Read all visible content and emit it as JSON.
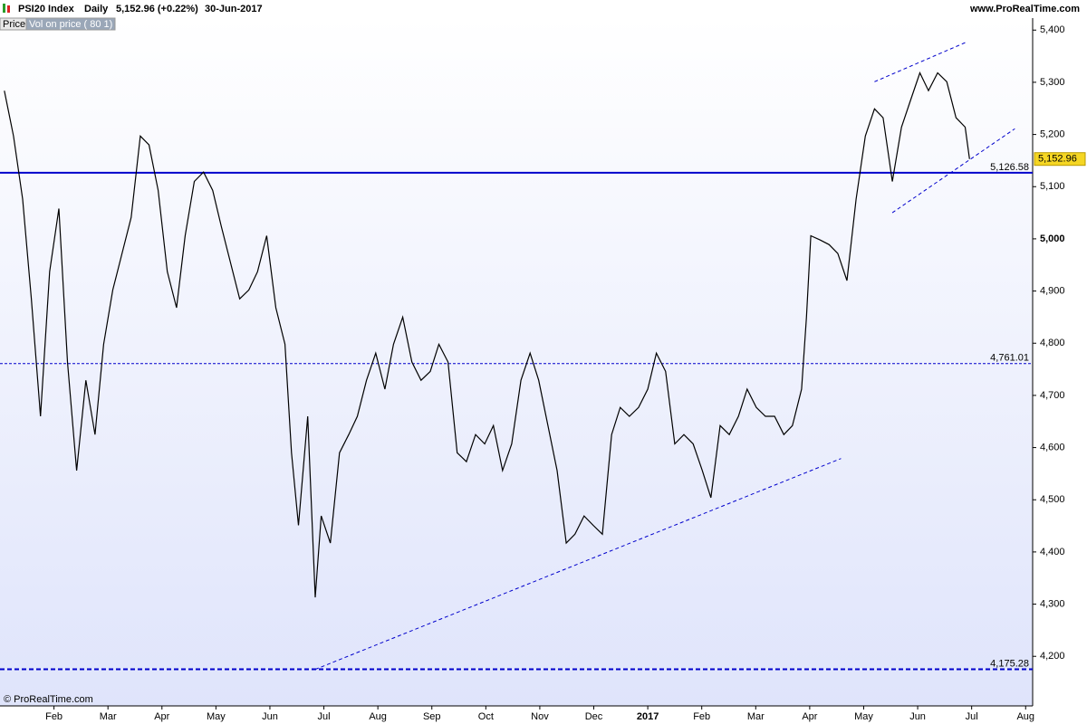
{
  "chart_data": {
    "type": "line",
    "header": {
      "symbol": "PSI20 Index",
      "period": "Daily",
      "quote": "5,152.96 (+0.22%)",
      "date": "30-Jun-2017",
      "site": "www.ProRealTime.com"
    },
    "tabs": [
      "Price",
      "Vol on price ( 80 1)"
    ],
    "copyright": "© ProRealTime.com",
    "xlim": [
      0,
      19.13
    ],
    "ylim": [
      4105,
      5423
    ],
    "xticks": [
      {
        "value": 1,
        "label": "Feb"
      },
      {
        "value": 2,
        "label": "Mar"
      },
      {
        "value": 3,
        "label": "Apr"
      },
      {
        "value": 4,
        "label": "May"
      },
      {
        "value": 5,
        "label": "Jun"
      },
      {
        "value": 6,
        "label": "Jul"
      },
      {
        "value": 7,
        "label": "Aug"
      },
      {
        "value": 8,
        "label": "Sep"
      },
      {
        "value": 9,
        "label": "Oct"
      },
      {
        "value": 10,
        "label": "Nov"
      },
      {
        "value": 11,
        "label": "Dec"
      },
      {
        "value": 12,
        "label": "2017"
      },
      {
        "value": 13,
        "label": "Feb"
      },
      {
        "value": 14,
        "label": "Mar"
      },
      {
        "value": 15,
        "label": "Apr"
      },
      {
        "value": 16,
        "label": "May"
      },
      {
        "value": 17,
        "label": "Jun"
      },
      {
        "value": 18,
        "label": "Jul"
      },
      {
        "value": 19,
        "label": "Aug"
      }
    ],
    "yticks": [
      {
        "value": 4200,
        "label": "4,200"
      },
      {
        "value": 4300,
        "label": "4,300"
      },
      {
        "value": 4400,
        "label": "4,400"
      },
      {
        "value": 4500,
        "label": "4,500"
      },
      {
        "value": 4600,
        "label": "4,600"
      },
      {
        "value": 4700,
        "label": "4,700"
      },
      {
        "value": 4800,
        "label": "4,800"
      },
      {
        "value": 4900,
        "label": "4,900"
      },
      {
        "value": 5000,
        "label": "5,000"
      },
      {
        "value": 5100,
        "label": "5,100"
      },
      {
        "value": 5200,
        "label": "5,200"
      },
      {
        "value": 5300,
        "label": "5,300"
      },
      {
        "value": 5400,
        "label": "5,400"
      }
    ],
    "x": [
      0.08,
      0.25,
      0.42,
      0.58,
      0.75,
      0.92,
      1.09,
      1.25,
      1.42,
      1.59,
      1.76,
      1.92,
      2.09,
      2.26,
      2.43,
      2.6,
      2.76,
      2.93,
      3.1,
      3.27,
      3.43,
      3.6,
      3.77,
      3.94,
      4.1,
      4.27,
      4.44,
      4.61,
      4.77,
      4.94,
      5.11,
      5.28,
      5.4,
      5.53,
      5.7,
      5.84,
      5.95,
      6.12,
      6.29,
      6.46,
      6.62,
      6.79,
      6.96,
      7.13,
      7.29,
      7.46,
      7.63,
      7.8,
      7.97,
      8.13,
      8.3,
      8.47,
      8.64,
      8.81,
      8.98,
      9.14,
      9.31,
      9.48,
      9.65,
      9.82,
      9.98,
      10.15,
      10.32,
      10.49,
      10.65,
      10.82,
      10.99,
      11.16,
      11.33,
      11.49,
      11.66,
      11.83,
      12,
      12.16,
      12.33,
      12.5,
      12.67,
      12.84,
      13.01,
      13.17,
      13.34,
      13.51,
      13.68,
      13.84,
      14.01,
      14.18,
      14.35,
      14.52,
      14.68,
      14.85,
      14.94,
      15.02,
      15.19,
      15.36,
      15.52,
      15.69,
      15.86,
      16.03,
      16.2,
      16.36,
      16.53,
      16.7,
      16.87,
      17.04,
      17.2,
      17.37,
      17.54,
      17.71,
      17.88,
      17.96
    ],
    "series": [
      {
        "name": "PSI20 Index",
        "color": "#000000",
        "values": [
          5284,
          5197,
          5076,
          4885,
          4660,
          4937,
          5058,
          4764,
          4556,
          4729,
          4625,
          4798,
          4902,
          4972,
          5041,
          5197,
          5180,
          5093,
          4937,
          4868,
          5006,
          5110,
          5128,
          5093,
          5024,
          4954,
          4885,
          4902,
          4937,
          5006,
          4868,
          4798,
          4590,
          4451,
          4660,
          4313,
          4469,
          4417,
          4590,
          4625,
          4660,
          4729,
          4781,
          4712,
          4798,
          4850,
          4764,
          4729,
          4746,
          4798,
          4764,
          4590,
          4573,
          4625,
          4607,
          4642,
          4556,
          4607,
          4729,
          4781,
          4729,
          4642,
          4556,
          4417,
          4434,
          4469,
          4451,
          4434,
          4625,
          4677,
          4660,
          4677,
          4712,
          4781,
          4746,
          4607,
          4625,
          4607,
          4556,
          4504,
          4642,
          4625,
          4660,
          4712,
          4677,
          4660,
          4660,
          4625,
          4642,
          4712,
          4850,
          5006,
          4998,
          4989,
          4972,
          4920,
          5076,
          5197,
          5249,
          5232,
          5110,
          5214,
          5266,
          5318,
          5284,
          5318,
          5301,
          5232,
          5214,
          5152.96
        ]
      }
    ],
    "levels": [
      {
        "value": 5126.58,
        "label": "5,126.58",
        "style": "solid"
      },
      {
        "value": 4761.01,
        "label": "4,761.01",
        "style": "dashed"
      },
      {
        "value": 4175.28,
        "label": "4,175.28",
        "style": "dashed-bold"
      }
    ],
    "trendlines": [
      {
        "x": [
          5.84,
          15.58
        ],
        "y": [
          4175,
          4579
        ]
      },
      {
        "x": [
          16.53,
          18.8
        ],
        "y": [
          5050,
          5211
        ]
      },
      {
        "x": [
          16.2,
          17.88
        ],
        "y": [
          5301,
          5376
        ]
      }
    ],
    "last_price": {
      "value": 5152.96,
      "label": "5,152.96"
    },
    "level_color": "#0000cc"
  }
}
